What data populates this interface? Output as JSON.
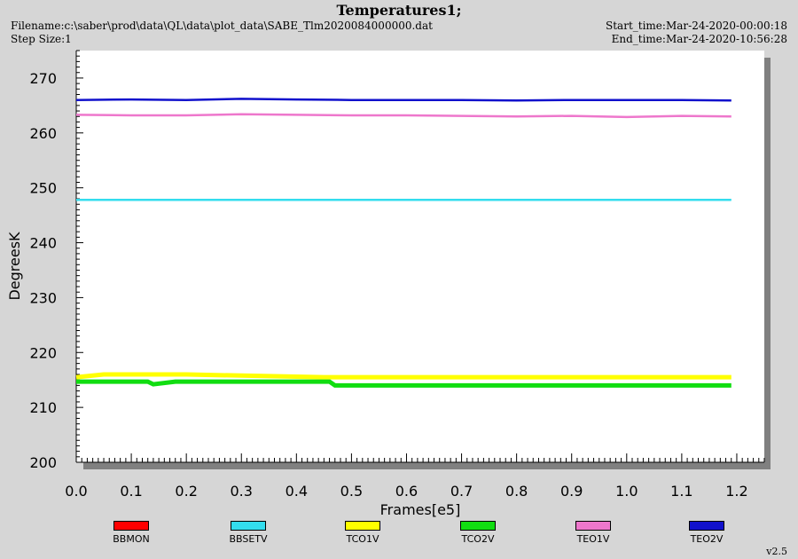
{
  "header": {
    "title": "Temperatures1;",
    "filename": "Filename:c:\\saber\\prod\\data\\QL\\data\\plot_data\\SABE_Tlm2020084000000.dat",
    "step_size": "Step Size:1",
    "start_time": "Start_time:Mar-24-2020-00:00:18",
    "end_time": "End_time:Mar-24-2020-10:56:28"
  },
  "version": "v2.5",
  "chart_data": {
    "type": "line",
    "xlabel": "Frames[e5]",
    "ylabel": "DegreesK",
    "xlim": [
      0,
      1.25
    ],
    "ylim": [
      200,
      275
    ],
    "xticks": [
      "0.0",
      "0.1",
      "0.2",
      "0.3",
      "0.4",
      "0.5",
      "0.6",
      "0.7",
      "0.8",
      "0.9",
      "1.0",
      "1.1",
      "1.2"
    ],
    "yticks": [
      "200",
      "210",
      "220",
      "230",
      "240",
      "250",
      "260",
      "270"
    ],
    "legend_position": "bottom",
    "series": [
      {
        "name": "BBMON",
        "color": "#ff0000",
        "x": [],
        "y": []
      },
      {
        "name": "BBSETV",
        "color": "#33ddee",
        "x": [
          0.0,
          0.2,
          0.4,
          0.6,
          0.8,
          1.0,
          1.19
        ],
        "y": [
          247.8,
          247.8,
          247.8,
          247.8,
          247.8,
          247.8,
          247.8
        ]
      },
      {
        "name": "TCO1V",
        "color": "#ffff00",
        "x": [
          0.0,
          0.05,
          0.1,
          0.2,
          0.3,
          0.45,
          0.5,
          0.7,
          0.9,
          1.19
        ],
        "y": [
          215.5,
          216.0,
          216.0,
          216.0,
          215.8,
          215.5,
          215.5,
          215.5,
          215.5,
          215.5
        ]
      },
      {
        "name": "TCO2V",
        "color": "#11dd11",
        "x": [
          0.0,
          0.13,
          0.14,
          0.18,
          0.3,
          0.46,
          0.47,
          0.7,
          0.9,
          1.19
        ],
        "y": [
          214.7,
          214.7,
          214.2,
          214.7,
          214.7,
          214.7,
          214.0,
          214.0,
          214.0,
          214.0
        ]
      },
      {
        "name": "TEO1V",
        "color": "#ee77cc",
        "x": [
          0.0,
          0.1,
          0.2,
          0.3,
          0.4,
          0.5,
          0.6,
          0.7,
          0.8,
          0.9,
          1.0,
          1.1,
          1.19
        ],
        "y": [
          263.3,
          263.2,
          263.2,
          263.4,
          263.3,
          263.2,
          263.2,
          263.1,
          263.0,
          263.1,
          262.9,
          263.1,
          263.0
        ]
      },
      {
        "name": "TEO2V",
        "color": "#1111cc",
        "x": [
          0.0,
          0.1,
          0.2,
          0.3,
          0.4,
          0.5,
          0.6,
          0.7,
          0.8,
          0.9,
          1.0,
          1.1,
          1.19
        ],
        "y": [
          266.0,
          266.1,
          266.0,
          266.2,
          266.1,
          266.0,
          266.0,
          266.0,
          265.9,
          266.0,
          266.0,
          266.0,
          265.9
        ]
      }
    ]
  }
}
